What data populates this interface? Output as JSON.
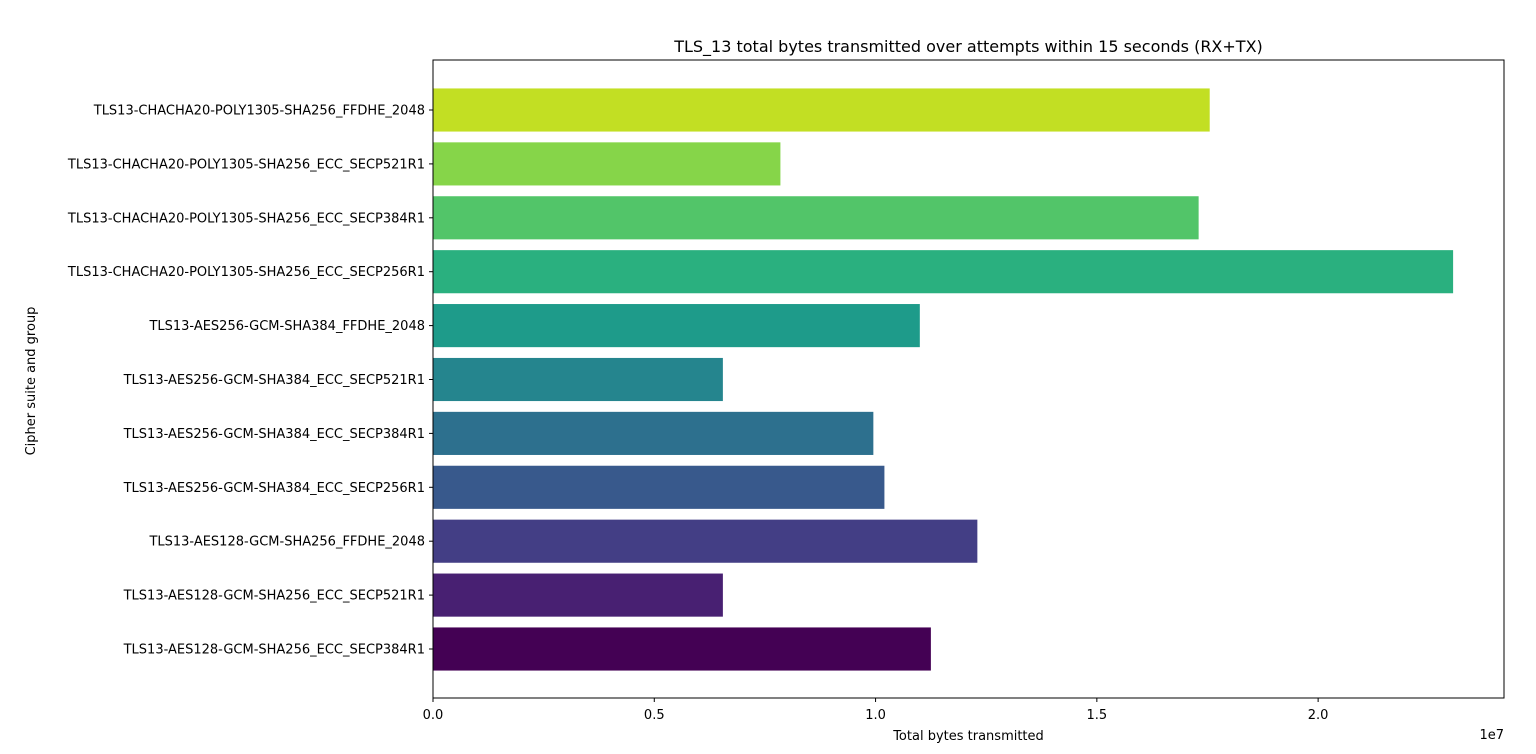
{
  "chart_data": {
    "type": "bar",
    "orientation": "horizontal",
    "title": "TLS_13 total bytes transmitted over attempts within 15 seconds (RX+TX)",
    "xlabel": "Total bytes transmitted",
    "ylabel": "Cipher suite and group",
    "x_offset_label": "1e7",
    "xlim": [
      0,
      24200000
    ],
    "x_ticks": [
      0,
      5000000,
      10000000,
      15000000,
      20000000
    ],
    "x_tick_labels": [
      "0.0",
      "0.5",
      "1.0",
      "1.5",
      "2.0"
    ],
    "grid": false,
    "categories": [
      "TLS13-AES128-GCM-SHA256_ECC_SECP384R1",
      "TLS13-AES128-GCM-SHA256_ECC_SECP521R1",
      "TLS13-AES128-GCM-SHA256_FFDHE_2048",
      "TLS13-AES256-GCM-SHA384_ECC_SECP256R1",
      "TLS13-AES256-GCM-SHA384_ECC_SECP384R1",
      "TLS13-AES256-GCM-SHA384_ECC_SECP521R1",
      "TLS13-AES256-GCM-SHA384_FFDHE_2048",
      "TLS13-CHACHA20-POLY1305-SHA256_ECC_SECP256R1",
      "TLS13-CHACHA20-POLY1305-SHA256_ECC_SECP384R1",
      "TLS13-CHACHA20-POLY1305-SHA256_ECC_SECP521R1",
      "TLS13-CHACHA20-POLY1305-SHA256_FFDHE_2048"
    ],
    "values": [
      11250000,
      6550000,
      12300000,
      10200000,
      9950000,
      6550000,
      11000000,
      23050000,
      17300000,
      7850000,
      17550000
    ],
    "colors": [
      "#440154",
      "#482072",
      "#433e85",
      "#38598c",
      "#2d708e",
      "#25858e",
      "#1e9b8a",
      "#2ab07f",
      "#52c569",
      "#86d549",
      "#c2df23"
    ]
  }
}
